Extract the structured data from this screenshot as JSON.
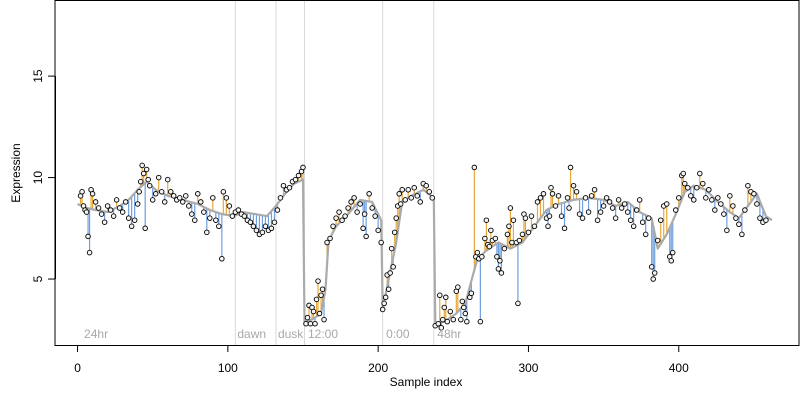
{
  "chart_data": {
    "type": "line",
    "title": "",
    "xlabel": "Sample index",
    "ylabel": "Expression",
    "xlim": [
      -15,
      480
    ],
    "ylim": [
      1.75,
      18.75
    ],
    "x_ticks": [
      0,
      100,
      200,
      300,
      400
    ],
    "y_ticks": [
      5,
      10,
      15
    ],
    "grid": false,
    "legend": "none",
    "colors": {
      "fitted_line": "#aaaaaa",
      "residual_above": "#e8a838",
      "residual_below": "#6f9fe0",
      "point_fill": "#f4f4f4",
      "point_edge": "#000000",
      "separator": "#d9d9d9",
      "period_label": "#a8a8a8"
    },
    "periods": [
      {
        "label": "24hr",
        "x": 3
      },
      {
        "label": "dawn",
        "x": 105
      },
      {
        "label": "dusk",
        "x": 132
      },
      {
        "label": "12:00",
        "x": 152
      },
      {
        "label": "0:00",
        "x": 204
      },
      {
        "label": "48hr",
        "x": 238
      }
    ],
    "separators": [
      105,
      132,
      151,
      203,
      237
    ],
    "anchors": [
      [
        0,
        8.7
      ],
      [
        6,
        8.5
      ],
      [
        12,
        8.4
      ],
      [
        20,
        8.3
      ],
      [
        28,
        8.6
      ],
      [
        34,
        8.9
      ],
      [
        40,
        9.4
      ],
      [
        46,
        9.8
      ],
      [
        52,
        9.4
      ],
      [
        60,
        9.1
      ],
      [
        70,
        8.9
      ],
      [
        80,
        8.7
      ],
      [
        88,
        8.4
      ],
      [
        96,
        8.2
      ],
      [
        104,
        8.1
      ],
      [
        110,
        8.3
      ],
      [
        118,
        8.2
      ],
      [
        126,
        8.1
      ],
      [
        132,
        8.6
      ],
      [
        138,
        9.2
      ],
      [
        144,
        9.7
      ],
      [
        150,
        9.9
      ],
      [
        151,
        2.9
      ],
      [
        156,
        3.0
      ],
      [
        162,
        3.3
      ],
      [
        165,
        4.5
      ],
      [
        167,
        6.9
      ],
      [
        172,
        7.6
      ],
      [
        180,
        8.2
      ],
      [
        188,
        8.9
      ],
      [
        196,
        8.8
      ],
      [
        202,
        7.9
      ],
      [
        203,
        3.5
      ],
      [
        207,
        5.0
      ],
      [
        212,
        6.8
      ],
      [
        216,
        8.8
      ],
      [
        222,
        9.1
      ],
      [
        230,
        9.4
      ],
      [
        237,
        9.0
      ],
      [
        238,
        2.8
      ],
      [
        244,
        2.9
      ],
      [
        252,
        3.3
      ],
      [
        258,
        3.8
      ],
      [
        262,
        4.9
      ],
      [
        266,
        6.0
      ],
      [
        272,
        6.4
      ],
      [
        280,
        6.8
      ],
      [
        288,
        6.5
      ],
      [
        296,
        6.8
      ],
      [
        304,
        7.6
      ],
      [
        312,
        8.4
      ],
      [
        320,
        8.7
      ],
      [
        330,
        8.9
      ],
      [
        340,
        9.0
      ],
      [
        350,
        8.9
      ],
      [
        358,
        8.6
      ],
      [
        366,
        8.8
      ],
      [
        374,
        8.3
      ],
      [
        382,
        8.0
      ],
      [
        386,
        6.5
      ],
      [
        392,
        7.2
      ],
      [
        398,
        8.2
      ],
      [
        404,
        9.3
      ],
      [
        410,
        9.6
      ],
      [
        418,
        9.4
      ],
      [
        426,
        8.8
      ],
      [
        434,
        8.3
      ],
      [
        440,
        8.0
      ],
      [
        446,
        8.6
      ],
      [
        452,
        9.2
      ],
      [
        458,
        8.1
      ],
      [
        462,
        7.9
      ]
    ],
    "points": [
      [
        2,
        9.1
      ],
      [
        3,
        9.3
      ],
      [
        4,
        8.6
      ],
      [
        5,
        8.4
      ],
      [
        6,
        8.3
      ],
      [
        7,
        7.1
      ],
      [
        8,
        6.3
      ],
      [
        9,
        9.4
      ],
      [
        10,
        9.2
      ],
      [
        12,
        8.8
      ],
      [
        14,
        8.5
      ],
      [
        16,
        8.2
      ],
      [
        18,
        7.8
      ],
      [
        20,
        8.6
      ],
      [
        22,
        8.4
      ],
      [
        24,
        8.1
      ],
      [
        26,
        8.9
      ],
      [
        28,
        8.5
      ],
      [
        30,
        8.3
      ],
      [
        32,
        8.8
      ],
      [
        34,
        8.0
      ],
      [
        36,
        7.6
      ],
      [
        38,
        7.9
      ],
      [
        40,
        8.7
      ],
      [
        41,
        9.3
      ],
      [
        42,
        9.8
      ],
      [
        43,
        10.6
      ],
      [
        44,
        10.2
      ],
      [
        45,
        7.5
      ],
      [
        46,
        10.4
      ],
      [
        47,
        9.9
      ],
      [
        48,
        9.6
      ],
      [
        50,
        8.9
      ],
      [
        52,
        9.2
      ],
      [
        54,
        10.0
      ],
      [
        56,
        9.3
      ],
      [
        58,
        8.8
      ],
      [
        60,
        9.9
      ],
      [
        62,
        9.3
      ],
      [
        64,
        9.1
      ],
      [
        66,
        8.9
      ],
      [
        68,
        9.0
      ],
      [
        70,
        8.8
      ],
      [
        72,
        9.1
      ],
      [
        74,
        8.6
      ],
      [
        76,
        8.2
      ],
      [
        78,
        7.9
      ],
      [
        80,
        9.2
      ],
      [
        82,
        8.8
      ],
      [
        84,
        8.3
      ],
      [
        86,
        7.3
      ],
      [
        88,
        8.0
      ],
      [
        90,
        9.0
      ],
      [
        92,
        7.9
      ],
      [
        94,
        7.6
      ],
      [
        96,
        6.0
      ],
      [
        97,
        9.3
      ],
      [
        99,
        9.0
      ],
      [
        101,
        8.6
      ],
      [
        103,
        8.1
      ],
      [
        105,
        8.3
      ],
      [
        107,
        8.4
      ],
      [
        109,
        8.2
      ],
      [
        111,
        8.1
      ],
      [
        113,
        7.9
      ],
      [
        115,
        7.8
      ],
      [
        117,
        7.6
      ],
      [
        119,
        7.4
      ],
      [
        121,
        7.2
      ],
      [
        123,
        7.3
      ],
      [
        125,
        7.6
      ],
      [
        127,
        7.4
      ],
      [
        129,
        7.5
      ],
      [
        131,
        7.8
      ],
      [
        133,
        8.4
      ],
      [
        135,
        9.0
      ],
      [
        137,
        9.6
      ],
      [
        139,
        9.4
      ],
      [
        141,
        9.5
      ],
      [
        143,
        9.8
      ],
      [
        145,
        9.9
      ],
      [
        147,
        10.1
      ],
      [
        149,
        10.3
      ],
      [
        150,
        10.5
      ],
      [
        152,
        2.8
      ],
      [
        153,
        3.1
      ],
      [
        154,
        3.7
      ],
      [
        155,
        2.8
      ],
      [
        156,
        3.6
      ],
      [
        157,
        3.4
      ],
      [
        158,
        2.8
      ],
      [
        159,
        4.0
      ],
      [
        160,
        4.9
      ],
      [
        161,
        3.3
      ],
      [
        162,
        4.2
      ],
      [
        163,
        4.5
      ],
      [
        164,
        3.0
      ],
      [
        166,
        6.8
      ],
      [
        168,
        7.0
      ],
      [
        170,
        7.6
      ],
      [
        172,
        8.0
      ],
      [
        174,
        8.3
      ],
      [
        176,
        7.9
      ],
      [
        178,
        8.1
      ],
      [
        180,
        8.5
      ],
      [
        182,
        8.8
      ],
      [
        184,
        9.0
      ],
      [
        186,
        8.3
      ],
      [
        188,
        8.7
      ],
      [
        190,
        7.5
      ],
      [
        191,
        8.2
      ],
      [
        192,
        7.1
      ],
      [
        194,
        9.2
      ],
      [
        196,
        8.5
      ],
      [
        198,
        8.1
      ],
      [
        200,
        7.4
      ],
      [
        202,
        6.8
      ],
      [
        203,
        3.5
      ],
      [
        204,
        3.8
      ],
      [
        205,
        4.1
      ],
      [
        206,
        5.2
      ],
      [
        207,
        4.5
      ],
      [
        208,
        5.3
      ],
      [
        209,
        6.5
      ],
      [
        210,
        5.6
      ],
      [
        211,
        7.3
      ],
      [
        212,
        8.0
      ],
      [
        213,
        8.6
      ],
      [
        214,
        9.2
      ],
      [
        215,
        8.7
      ],
      [
        216,
        9.4
      ],
      [
        218,
        8.9
      ],
      [
        220,
        9.4
      ],
      [
        222,
        9.0
      ],
      [
        224,
        9.5
      ],
      [
        226,
        9.1
      ],
      [
        228,
        8.8
      ],
      [
        230,
        9.7
      ],
      [
        232,
        9.6
      ],
      [
        234,
        9.3
      ],
      [
        236,
        9.0
      ],
      [
        238,
        2.7
      ],
      [
        240,
        2.8
      ],
      [
        241,
        4.2
      ],
      [
        242,
        2.6
      ],
      [
        243,
        3.0
      ],
      [
        244,
        3.6
      ],
      [
        245,
        4.1
      ],
      [
        246,
        2.9
      ],
      [
        248,
        3.4
      ],
      [
        250,
        3.0
      ],
      [
        252,
        4.4
      ],
      [
        253,
        4.6
      ],
      [
        255,
        3.0
      ],
      [
        256,
        3.9
      ],
      [
        257,
        3.6
      ],
      [
        258,
        3.3
      ],
      [
        259,
        2.9
      ],
      [
        261,
        4.1
      ],
      [
        262,
        4.3
      ],
      [
        264,
        10.5
      ],
      [
        265,
        6.1
      ],
      [
        266,
        6.3
      ],
      [
        267,
        6.0
      ],
      [
        268,
        2.9
      ],
      [
        269,
        6.1
      ],
      [
        271,
        7.0
      ],
      [
        272,
        7.9
      ],
      [
        273,
        6.7
      ],
      [
        274,
        6.6
      ],
      [
        275,
        7.4
      ],
      [
        276,
        6.9
      ],
      [
        278,
        7.0
      ],
      [
        279,
        6.1
      ],
      [
        280,
        5.5
      ],
      [
        281,
        5.9
      ],
      [
        282,
        5.3
      ],
      [
        284,
        6.5
      ],
      [
        286,
        7.2
      ],
      [
        287,
        7.6
      ],
      [
        288,
        8.5
      ],
      [
        289,
        6.8
      ],
      [
        290,
        7.9
      ],
      [
        292,
        6.8
      ],
      [
        293,
        3.8
      ],
      [
        294,
        6.9
      ],
      [
        296,
        7.2
      ],
      [
        297,
        8.2
      ],
      [
        298,
        8.0
      ],
      [
        300,
        7.3
      ],
      [
        302,
        8.1
      ],
      [
        304,
        7.6
      ],
      [
        306,
        8.8
      ],
      [
        308,
        9.0
      ],
      [
        310,
        9.2
      ],
      [
        312,
        8.0
      ],
      [
        313,
        7.6
      ],
      [
        314,
        8.1
      ],
      [
        315,
        9.5
      ],
      [
        316,
        9.2
      ],
      [
        318,
        8.6
      ],
      [
        320,
        9.1
      ],
      [
        322,
        8.1
      ],
      [
        324,
        7.5
      ],
      [
        326,
        9.0
      ],
      [
        327,
        8.5
      ],
      [
        328,
        10.5
      ],
      [
        330,
        9.6
      ],
      [
        332,
        9.3
      ],
      [
        334,
        8.2
      ],
      [
        336,
        8.0
      ],
      [
        338,
        9.0
      ],
      [
        340,
        8.3
      ],
      [
        342,
        9.1
      ],
      [
        344,
        9.4
      ],
      [
        346,
        7.9
      ],
      [
        348,
        8.3
      ],
      [
        350,
        8.6
      ],
      [
        352,
        9.0
      ],
      [
        354,
        8.8
      ],
      [
        356,
        8.5
      ],
      [
        358,
        8.0
      ],
      [
        360,
        8.9
      ],
      [
        362,
        8.5
      ],
      [
        364,
        8.7
      ],
      [
        366,
        8.3
      ],
      [
        368,
        7.9
      ],
      [
        370,
        7.6
      ],
      [
        372,
        8.4
      ],
      [
        374,
        8.9
      ],
      [
        376,
        7.8
      ],
      [
        378,
        7.2
      ],
      [
        380,
        8.0
      ],
      [
        382,
        5.6
      ],
      [
        383,
        5.0
      ],
      [
        384,
        5.3
      ],
      [
        386,
        6.9
      ],
      [
        388,
        7.9
      ],
      [
        390,
        8.6
      ],
      [
        392,
        8.7
      ],
      [
        394,
        6.1
      ],
      [
        395,
        5.9
      ],
      [
        396,
        6.3
      ],
      [
        398,
        8.4
      ],
      [
        400,
        9.0
      ],
      [
        402,
        10.1
      ],
      [
        403,
        10.2
      ],
      [
        404,
        9.7
      ],
      [
        406,
        9.5
      ],
      [
        408,
        9.1
      ],
      [
        410,
        8.9
      ],
      [
        412,
        9.5
      ],
      [
        414,
        10.2
      ],
      [
        416,
        9.7
      ],
      [
        418,
        9.0
      ],
      [
        420,
        9.4
      ],
      [
        422,
        8.9
      ],
      [
        424,
        8.4
      ],
      [
        426,
        9.0
      ],
      [
        428,
        8.7
      ],
      [
        430,
        8.2
      ],
      [
        432,
        7.4
      ],
      [
        434,
        9.1
      ],
      [
        436,
        8.6
      ],
      [
        438,
        8.0
      ],
      [
        440,
        7.7
      ],
      [
        442,
        7.2
      ],
      [
        444,
        8.4
      ],
      [
        446,
        9.6
      ],
      [
        448,
        9.3
      ],
      [
        450,
        9.2
      ],
      [
        452,
        8.7
      ],
      [
        454,
        8.0
      ],
      [
        456,
        7.8
      ],
      [
        458,
        7.9
      ]
    ]
  }
}
